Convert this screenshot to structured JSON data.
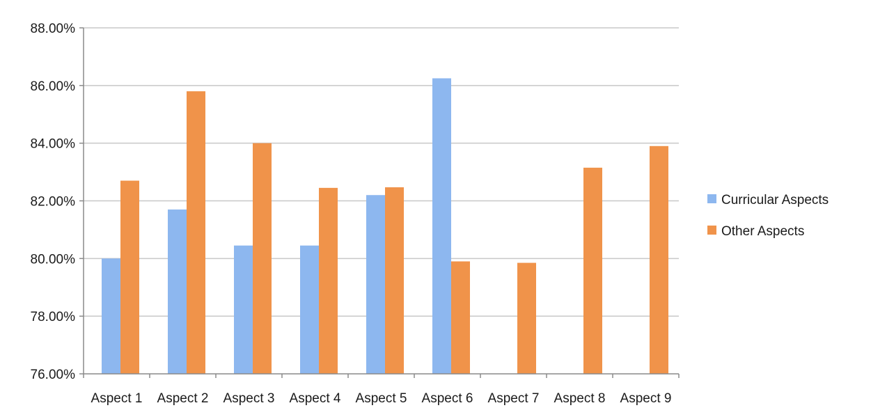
{
  "chart_data": {
    "type": "bar",
    "title": "",
    "xlabel": "",
    "ylabel": "",
    "categories": [
      "Aspect 1",
      "Aspect 2",
      "Aspect 3",
      "Aspect 4",
      "Aspect 5",
      "Aspect 6",
      "Aspect 7",
      "Aspect 8",
      "Aspect 9"
    ],
    "series": [
      {
        "name": "Curricular Aspects",
        "color": "#8db7ef",
        "values": [
          0.8,
          0.817,
          0.8045,
          0.8045,
          0.822,
          0.8625,
          null,
          null,
          null
        ]
      },
      {
        "name": "Other Aspects",
        "color": "#f0934a",
        "values": [
          0.827,
          0.858,
          0.84,
          0.8245,
          0.8247,
          0.799,
          0.7985,
          0.8315,
          0.839
        ]
      }
    ],
    "ylim": [
      0.76,
      0.88
    ],
    "yticks": [
      0.76,
      0.78,
      0.8,
      0.82,
      0.84,
      0.86,
      0.88
    ],
    "ytick_labels": [
      "76.00%",
      "78.00%",
      "80.00%",
      "82.00%",
      "84.00%",
      "86.00%",
      "88.00%"
    ],
    "grid": true,
    "legend_position": "right"
  }
}
